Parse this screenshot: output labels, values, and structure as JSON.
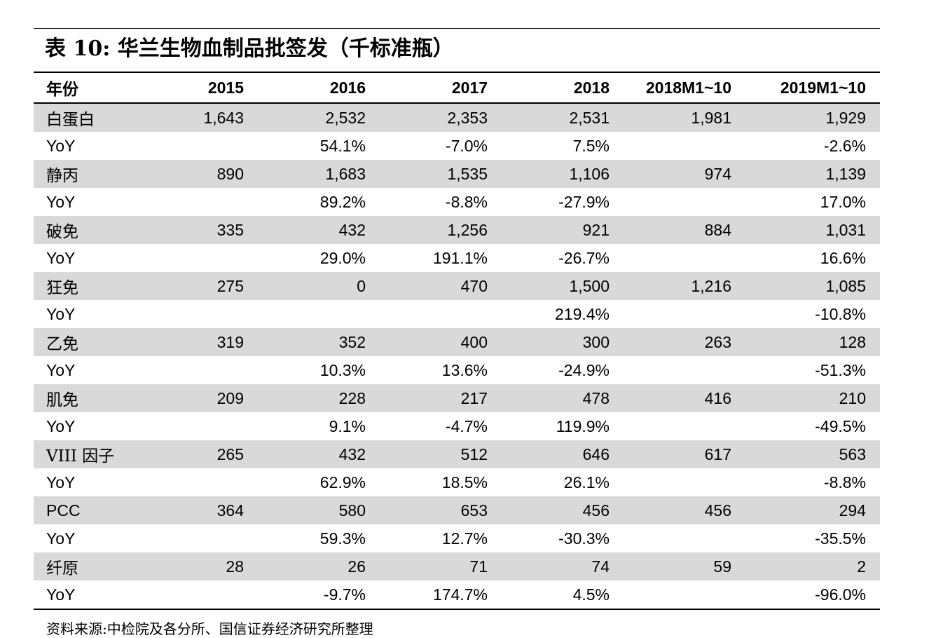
{
  "title": "表 10:  华兰生物血制品批签发（千标准瓶）",
  "headers": [
    "年份",
    "2015",
    "2016",
    "2017",
    "2018",
    "2018M1~10",
    "2019M1~10"
  ],
  "rows": [
    {
      "label": "白蛋白",
      "values": [
        "1,643",
        "2,532",
        "2,353",
        "2,531",
        "1,981",
        "1,929"
      ],
      "shaded": true
    },
    {
      "label": "YoY",
      "values": [
        "",
        "54.1%",
        "-7.0%",
        "7.5%",
        "",
        "-2.6%"
      ],
      "shaded": false
    },
    {
      "label": "静丙",
      "values": [
        "890",
        "1,683",
        "1,535",
        "1,106",
        "974",
        "1,139"
      ],
      "shaded": true
    },
    {
      "label": "YoY",
      "values": [
        "",
        "89.2%",
        "-8.8%",
        "-27.9%",
        "",
        "17.0%"
      ],
      "shaded": false
    },
    {
      "label": "破免",
      "values": [
        "335",
        "432",
        "1,256",
        "921",
        "884",
        "1,031"
      ],
      "shaded": true
    },
    {
      "label": "YoY",
      "values": [
        "",
        "29.0%",
        "191.1%",
        "-26.7%",
        "",
        "16.6%"
      ],
      "shaded": false
    },
    {
      "label": "狂免",
      "values": [
        "275",
        "0",
        "470",
        "1,500",
        "1,216",
        "1,085"
      ],
      "shaded": true
    },
    {
      "label": "YoY",
      "values": [
        "",
        "",
        "",
        "219.4%",
        "",
        "-10.8%"
      ],
      "shaded": false
    },
    {
      "label": "乙免",
      "values": [
        "319",
        "352",
        "400",
        "300",
        "263",
        "128"
      ],
      "shaded": true
    },
    {
      "label": "YoY",
      "values": [
        "",
        "10.3%",
        "13.6%",
        "-24.9%",
        "",
        "-51.3%"
      ],
      "shaded": false
    },
    {
      "label": "肌免",
      "values": [
        "209",
        "228",
        "217",
        "478",
        "416",
        "210"
      ],
      "shaded": true
    },
    {
      "label": "YoY",
      "values": [
        "",
        "9.1%",
        "-4.7%",
        "119.9%",
        "",
        "-49.5%"
      ],
      "shaded": false
    },
    {
      "label": "VIII 因子",
      "values": [
        "265",
        "432",
        "512",
        "646",
        "617",
        "563"
      ],
      "shaded": true
    },
    {
      "label": "YoY",
      "values": [
        "",
        "62.9%",
        "18.5%",
        "26.1%",
        "",
        "-8.8%"
      ],
      "shaded": false
    },
    {
      "label": "PCC",
      "values": [
        "364",
        "580",
        "653",
        "456",
        "456",
        "294"
      ],
      "shaded": true
    },
    {
      "label": "YoY",
      "values": [
        "",
        "59.3%",
        "12.7%",
        "-30.3%",
        "",
        "-35.5%"
      ],
      "shaded": false
    },
    {
      "label": "纤原",
      "values": [
        "28",
        "26",
        "71",
        "74",
        "59",
        "2"
      ],
      "shaded": true
    },
    {
      "label": "YoY",
      "values": [
        "",
        "-9.7%",
        "174.7%",
        "4.5%",
        "",
        "-96.0%"
      ],
      "shaded": false
    }
  ],
  "source": "资料来源:中检院及各分所、国信证券经济研究所整理"
}
